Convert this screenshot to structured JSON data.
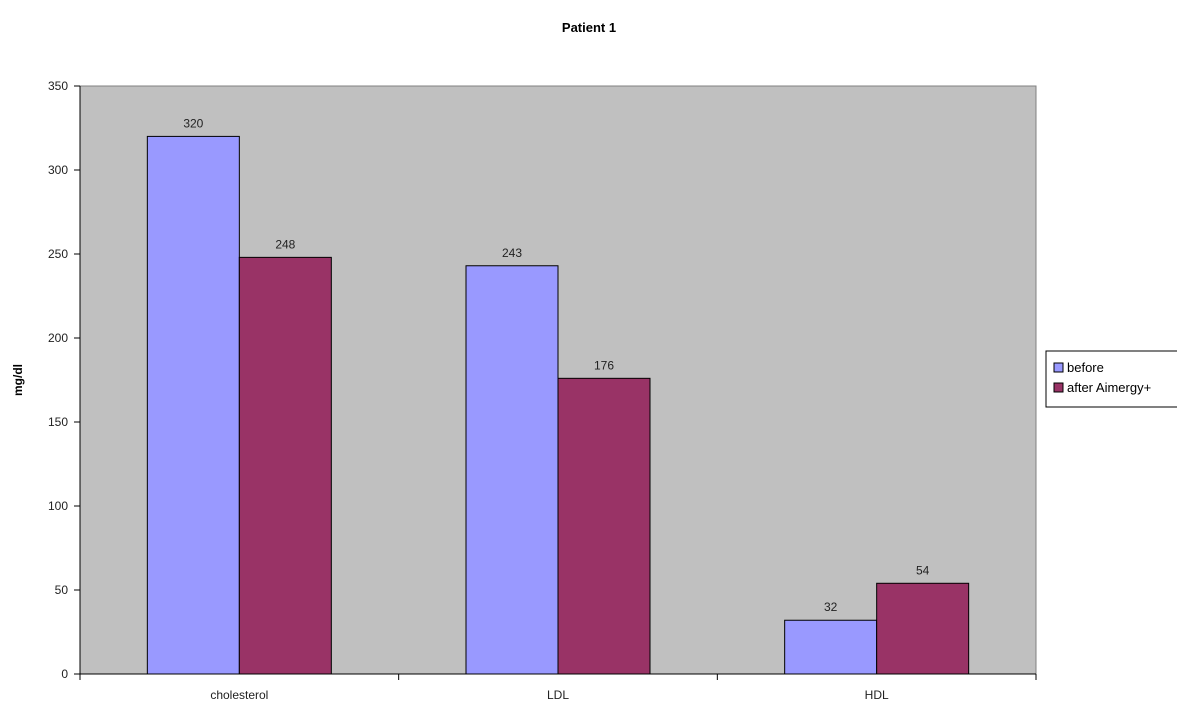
{
  "chart_data": {
    "type": "bar",
    "title": "Patient 1",
    "xlabel": "",
    "ylabel": "mg/dl",
    "ylim": [
      0,
      350
    ],
    "ytick_step": 50,
    "categories": [
      "cholesterol",
      "LDL",
      "HDL"
    ],
    "series": [
      {
        "name": "before",
        "values": [
          320,
          243,
          32
        ],
        "color": "#9999ff"
      },
      {
        "name": "after Aimergy+",
        "values": [
          248,
          176,
          54
        ],
        "color": "#993366"
      }
    ],
    "plot_background": "#c0c0c0",
    "grid": false,
    "legend": "right"
  }
}
